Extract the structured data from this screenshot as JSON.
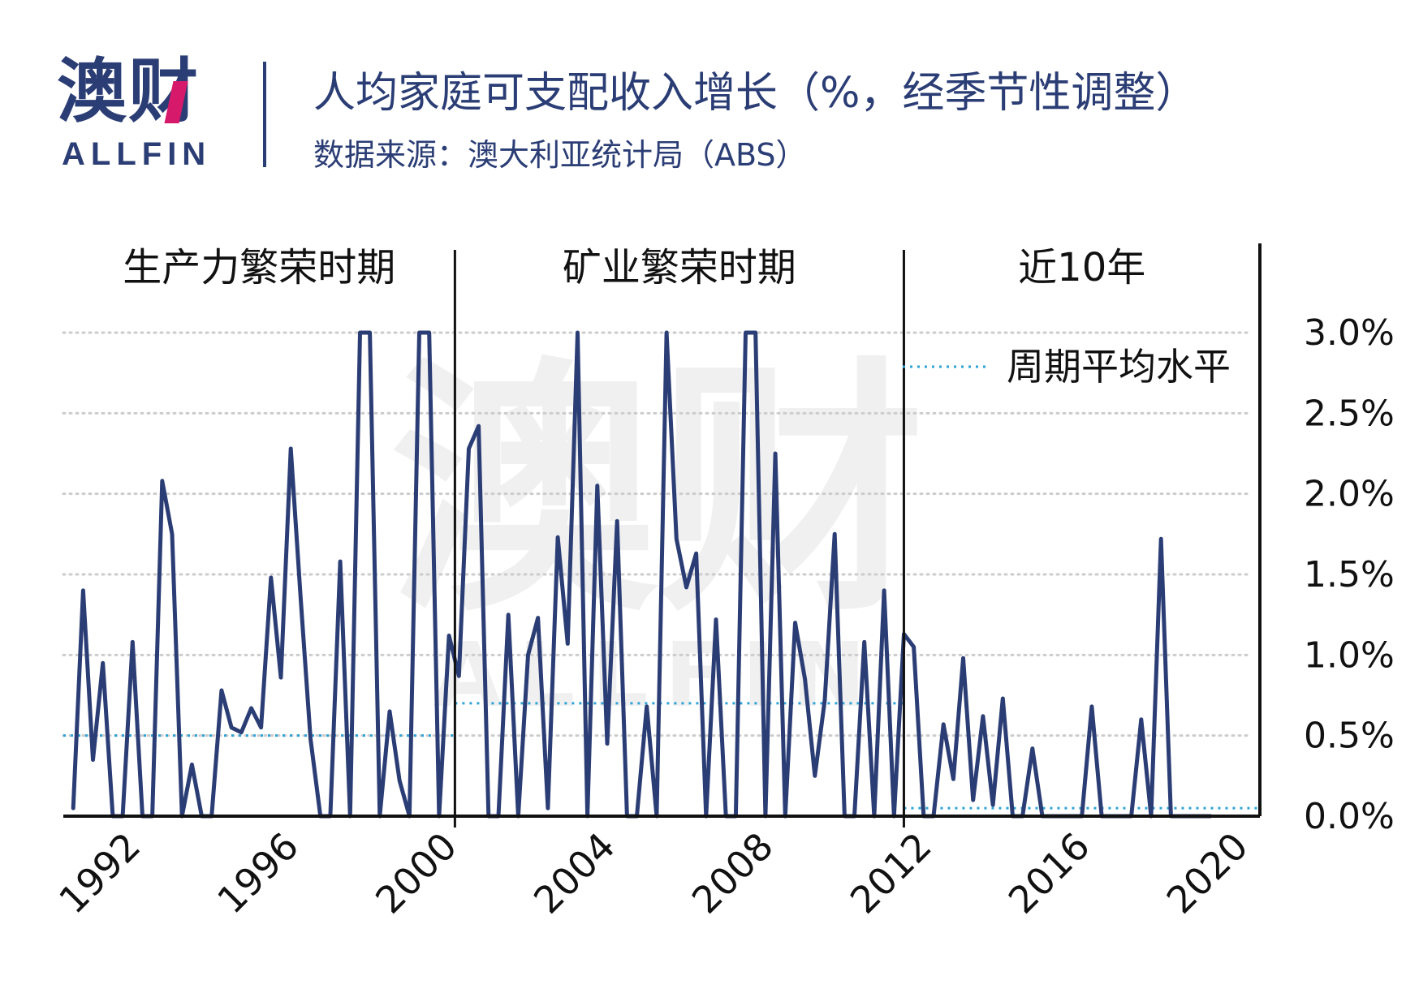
{
  "header": {
    "logo_text": "澳财",
    "logo_subtext": "ALLFIN",
    "title": "人均家庭可支配收入增长（%，经季节性调整）",
    "subtitle": "数据来源：澳大利亚统计局（ABS）"
  },
  "watermark": "澳财 ALLFIN",
  "colors": {
    "line": "#2b3d75",
    "average": "#2ea3d6",
    "grid": "#cccccc",
    "axis": "#111111",
    "brand": "#2b3d75",
    "brand_accent": "#d6196b"
  },
  "chart_data": {
    "type": "line",
    "title": "人均家庭可支配收入增长（%，经季节性调整）",
    "ylim": [
      0,
      3.0
    ],
    "y_ticks": [
      0.0,
      0.5,
      1.0,
      1.5,
      2.0,
      2.5,
      3.0
    ],
    "y_tick_labels": [
      "0.0%",
      "0.5%",
      "1.0%",
      "1.5%",
      "2.0%",
      "2.5%",
      "3.0%"
    ],
    "x_tick_labels": [
      "1992",
      "1996",
      "2000",
      "2004",
      "2008",
      "2012",
      "2016",
      "2020"
    ],
    "x_ticks": [
      1992,
      1996,
      2000,
      2004,
      2008,
      2012,
      2016,
      2020
    ],
    "xlim": [
      1990.0,
      2020.25
    ],
    "y_axis_side": "right",
    "grid": "horizontal dotted",
    "legend": {
      "label": "周期平均水平",
      "position": "top-right"
    },
    "periods": [
      {
        "label": "生产力繁荣时期",
        "start": 1990.0,
        "end": 1999.9,
        "average": 0.5
      },
      {
        "label": "矿业繁荣时期",
        "start": 1999.9,
        "end": 2011.25,
        "average": 0.7
      },
      {
        "label": "近10年",
        "start": 2011.25,
        "end": 2020.25,
        "average": 0.05
      }
    ],
    "series": [
      {
        "x": [
          1990.25,
          1990.5,
          1990.75,
          1991.0,
          1991.25,
          1991.5,
          1991.75,
          1992.0,
          1992.25,
          1992.5,
          1992.75,
          1993.0,
          1993.25,
          1993.5,
          1993.75,
          1994.0,
          1994.25,
          1994.5,
          1994.75,
          1995.0,
          1995.25,
          1995.5,
          1995.75,
          1996.0,
          1996.25,
          1996.5,
          1996.75,
          1997.0,
          1997.25,
          1997.5,
          1997.75,
          1998.0,
          1998.25,
          1998.5,
          1998.75,
          1999.0,
          1999.25,
          1999.5,
          1999.75,
          2000.0,
          2000.25,
          2000.5,
          2000.75,
          2001.0,
          2001.25,
          2001.5,
          2001.75,
          2002.0,
          2002.25,
          2002.5,
          2002.75,
          2003.0,
          2003.25,
          2003.5,
          2003.75,
          2004.0,
          2004.25,
          2004.5,
          2004.75,
          2005.0,
          2005.25,
          2005.5,
          2005.75,
          2006.0,
          2006.25,
          2006.5,
          2006.75,
          2007.0,
          2007.25,
          2007.5,
          2007.75,
          2008.0,
          2008.25,
          2008.5,
          2008.75,
          2009.0,
          2009.25,
          2009.5,
          2009.75,
          2010.0,
          2010.25,
          2010.5,
          2010.75,
          2011.0,
          2011.25,
          2011.5,
          2011.75,
          2012.0,
          2012.25,
          2012.5,
          2012.75,
          2013.0,
          2013.25,
          2013.5,
          2013.75,
          2014.0,
          2014.25,
          2014.5,
          2014.75,
          2015.0,
          2015.25,
          2015.5,
          2015.75,
          2016.0,
          2016.25,
          2016.5,
          2016.75,
          2017.0,
          2017.25,
          2017.5,
          2017.75,
          2018.0,
          2018.25,
          2018.5,
          2018.75,
          2019.0
        ],
        "values": [
          0.05,
          1.4,
          0.35,
          0.95,
          0.0,
          0.0,
          1.08,
          0.0,
          0.0,
          2.08,
          1.75,
          0.0,
          0.32,
          0.0,
          0.0,
          0.78,
          0.55,
          0.52,
          0.67,
          0.55,
          1.48,
          0.86,
          2.28,
          1.35,
          0.48,
          0.0,
          0.0,
          1.58,
          0.0,
          3.0,
          3.0,
          0.0,
          0.65,
          0.22,
          0.0,
          3.0,
          3.0,
          0.0,
          1.12,
          0.87,
          2.28,
          2.42,
          0.0,
          0.0,
          1.25,
          0.0,
          1.0,
          1.23,
          0.05,
          1.73,
          1.07,
          3.0,
          0.0,
          2.05,
          0.45,
          1.83,
          0.0,
          0.0,
          0.68,
          0.0,
          3.0,
          1.72,
          1.42,
          1.63,
          0.0,
          1.22,
          0.0,
          0.0,
          3.0,
          3.0,
          0.0,
          2.25,
          0.0,
          1.2,
          0.85,
          0.25,
          0.72,
          1.75,
          0.0,
          0.0,
          1.08,
          0.0,
          1.4,
          0.0,
          1.13,
          1.05,
          0.0,
          0.0,
          0.57,
          0.23,
          0.98,
          0.1,
          0.62,
          0.07,
          0.73,
          0.0,
          0.0,
          0.42,
          0.0,
          0.0,
          0.0,
          0.0,
          0.0,
          0.68,
          0.0,
          0.0,
          0.0,
          0.0,
          0.6,
          0.0,
          1.72,
          0.0,
          0.0,
          0.0,
          0.0,
          0.0
        ]
      }
    ]
  }
}
